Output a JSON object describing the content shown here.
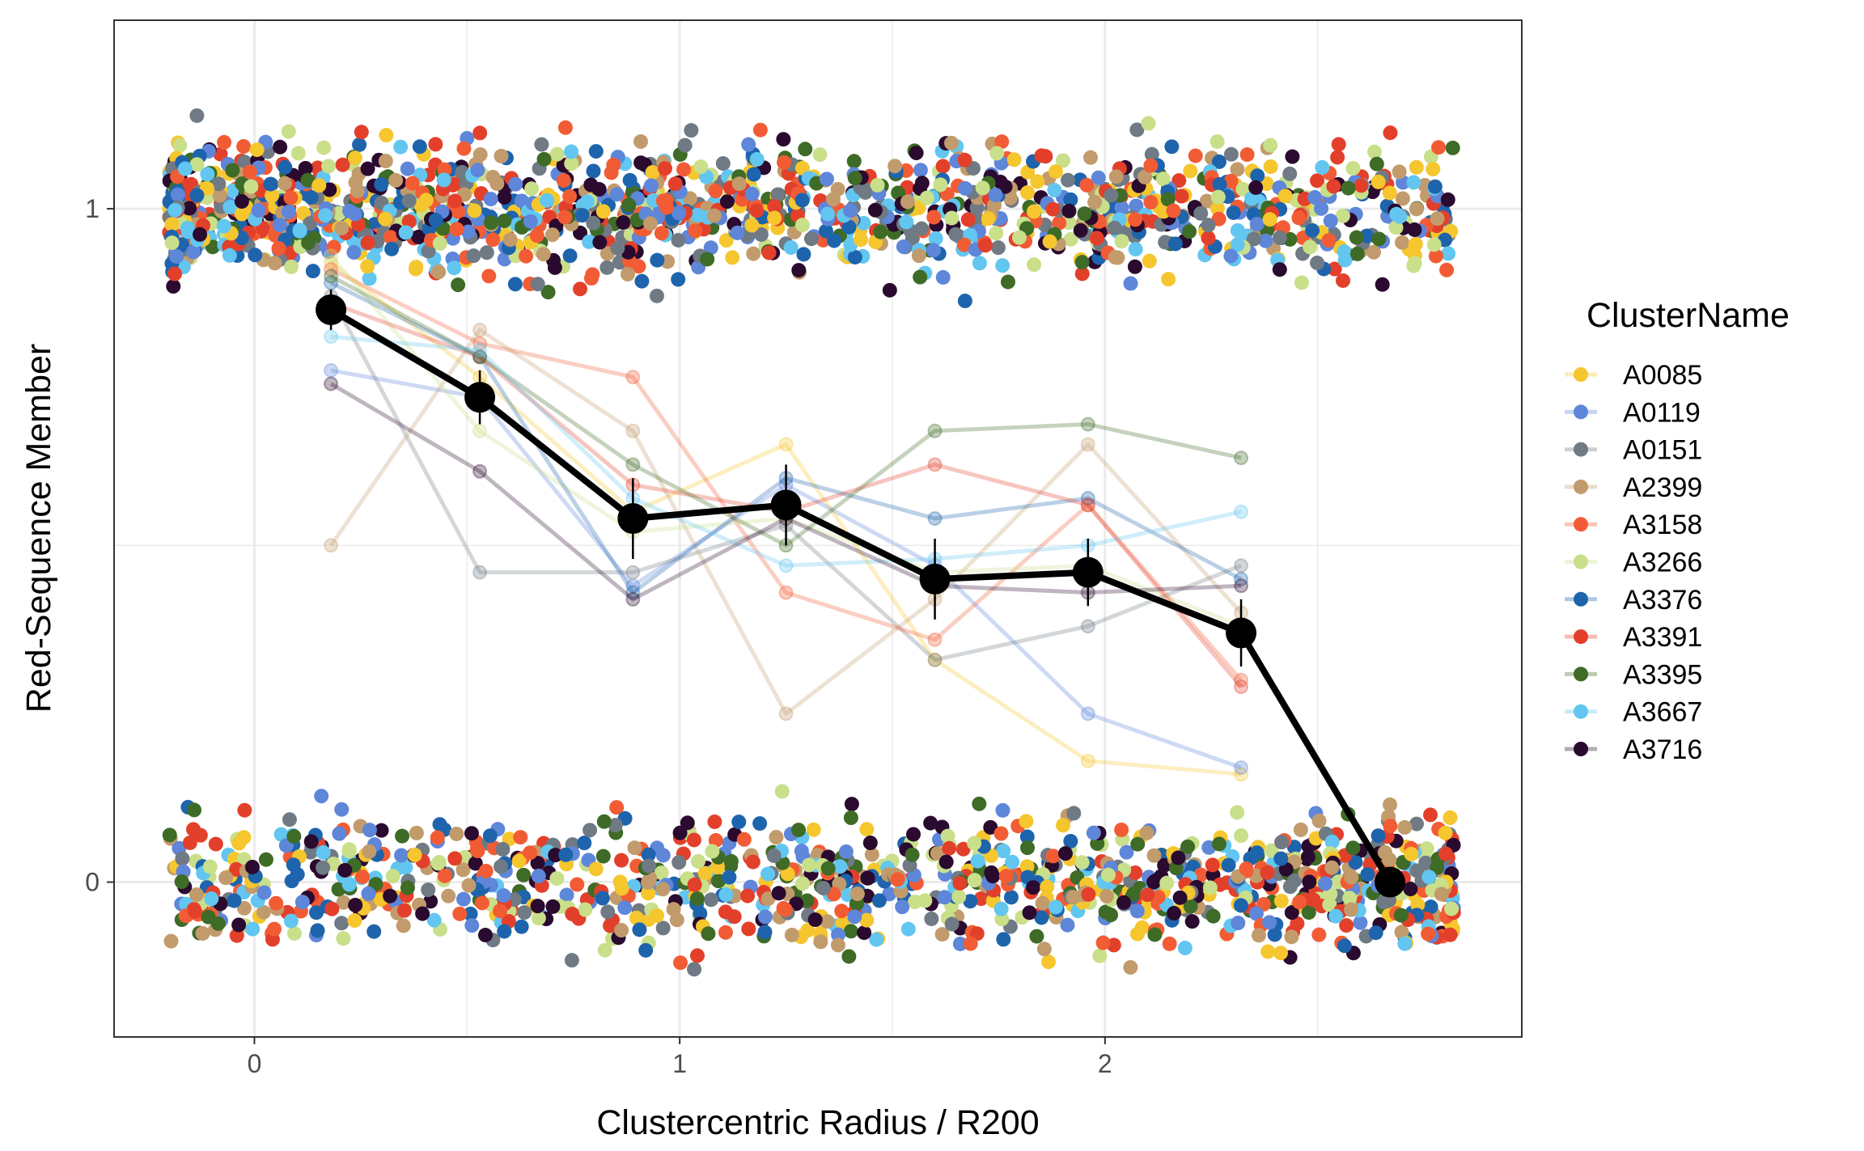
{
  "chart_data": {
    "type": "scatter",
    "xlabel": "Clustercentric Radius / R200",
    "ylabel": "Red-Sequence Member",
    "x_ticks": [
      0,
      1,
      2
    ],
    "y_ticks": [
      0,
      1
    ],
    "xlim": [
      -0.33,
      2.98
    ],
    "ylim": [
      -0.23,
      1.28
    ],
    "grid": true,
    "legend": {
      "title": "ClusterName",
      "placement": "right"
    },
    "series": [
      {
        "name": "A0085",
        "color": "#F5C62E",
        "x": [
          0.18,
          0.53,
          0.89,
          1.25,
          1.6,
          1.96,
          2.32
        ],
        "y": [
          0.92,
          0.75,
          0.55,
          0.65,
          0.33,
          0.18,
          0.16
        ]
      },
      {
        "name": "A0119",
        "color": "#5E86D9",
        "x": [
          0.18,
          0.53,
          0.89,
          1.25,
          1.6,
          1.96,
          2.32
        ],
        "y": [
          0.76,
          0.72,
          0.44,
          0.59,
          0.47,
          0.25,
          0.17
        ]
      },
      {
        "name": "A0151",
        "color": "#6F7A84",
        "x": [
          0.18,
          0.53,
          0.89,
          1.25,
          1.6,
          1.96,
          2.32
        ],
        "y": [
          0.87,
          0.46,
          0.46,
          0.53,
          0.33,
          0.38,
          0.47
        ]
      },
      {
        "name": "A2399",
        "color": "#C29B6C",
        "x": [
          0.18,
          0.53,
          0.89,
          1.25,
          1.6,
          1.96,
          2.32
        ],
        "y": [
          0.5,
          0.82,
          0.67,
          0.25,
          0.42,
          0.65,
          0.4
        ]
      },
      {
        "name": "A3158",
        "color": "#F25C34",
        "x": [
          0.18,
          0.53,
          0.89,
          1.25,
          1.6,
          1.96,
          2.32
        ],
        "y": [
          0.91,
          0.8,
          0.75,
          0.43,
          0.36,
          0.56,
          0.3
        ]
      },
      {
        "name": "A3266",
        "color": "#C9DF8A",
        "x": [
          0.18,
          0.53,
          0.89,
          1.25,
          1.6,
          1.96,
          2.32
        ],
        "y": [
          0.93,
          0.67,
          0.52,
          0.54,
          0.46,
          0.47,
          0.38
        ]
      },
      {
        "name": "A3376",
        "color": "#1E64AD",
        "x": [
          0.18,
          0.53,
          0.89,
          1.25,
          1.6,
          1.96,
          2.32
        ],
        "y": [
          0.89,
          0.78,
          0.43,
          0.6,
          0.54,
          0.57,
          0.45
        ]
      },
      {
        "name": "A3391",
        "color": "#E3402B",
        "x": [
          0.18,
          0.53,
          0.89,
          1.25,
          1.6,
          1.96,
          2.32
        ],
        "y": [
          0.86,
          0.78,
          0.59,
          0.55,
          0.62,
          0.56,
          0.29
        ]
      },
      {
        "name": "A3395",
        "color": "#3E6B26",
        "x": [
          0.18,
          0.53,
          0.89,
          1.25,
          1.6,
          1.96,
          2.32
        ],
        "y": [
          0.9,
          0.78,
          0.62,
          0.5,
          0.67,
          0.68,
          0.63
        ]
      },
      {
        "name": "A3667",
        "color": "#62C6F0",
        "x": [
          0.18,
          0.53,
          0.89,
          1.25,
          1.6,
          1.96,
          2.32
        ],
        "y": [
          0.81,
          0.79,
          0.57,
          0.47,
          0.48,
          0.5,
          0.55
        ]
      },
      {
        "name": "A3716",
        "color": "#2A0A2E",
        "x": [
          0.18,
          0.53,
          0.89,
          1.25,
          1.6,
          1.96,
          2.32
        ],
        "y": [
          0.74,
          0.61,
          0.42,
          0.54,
          0.44,
          0.43,
          0.44
        ]
      }
    ],
    "mean": {
      "x": [
        0.18,
        0.53,
        0.89,
        1.25,
        1.6,
        1.96,
        2.32,
        2.67
      ],
      "y": [
        0.85,
        0.72,
        0.54,
        0.56,
        0.45,
        0.46,
        0.37,
        0.0
      ],
      "err": [
        0.03,
        0.04,
        0.06,
        0.06,
        0.06,
        0.05,
        0.05,
        0.0
      ],
      "color": "#000000"
    },
    "jitter_points": {
      "member_y": 1,
      "nonmember_y": 0,
      "x_range": [
        -0.2,
        2.82
      ],
      "y_spread": 0.16
    }
  }
}
